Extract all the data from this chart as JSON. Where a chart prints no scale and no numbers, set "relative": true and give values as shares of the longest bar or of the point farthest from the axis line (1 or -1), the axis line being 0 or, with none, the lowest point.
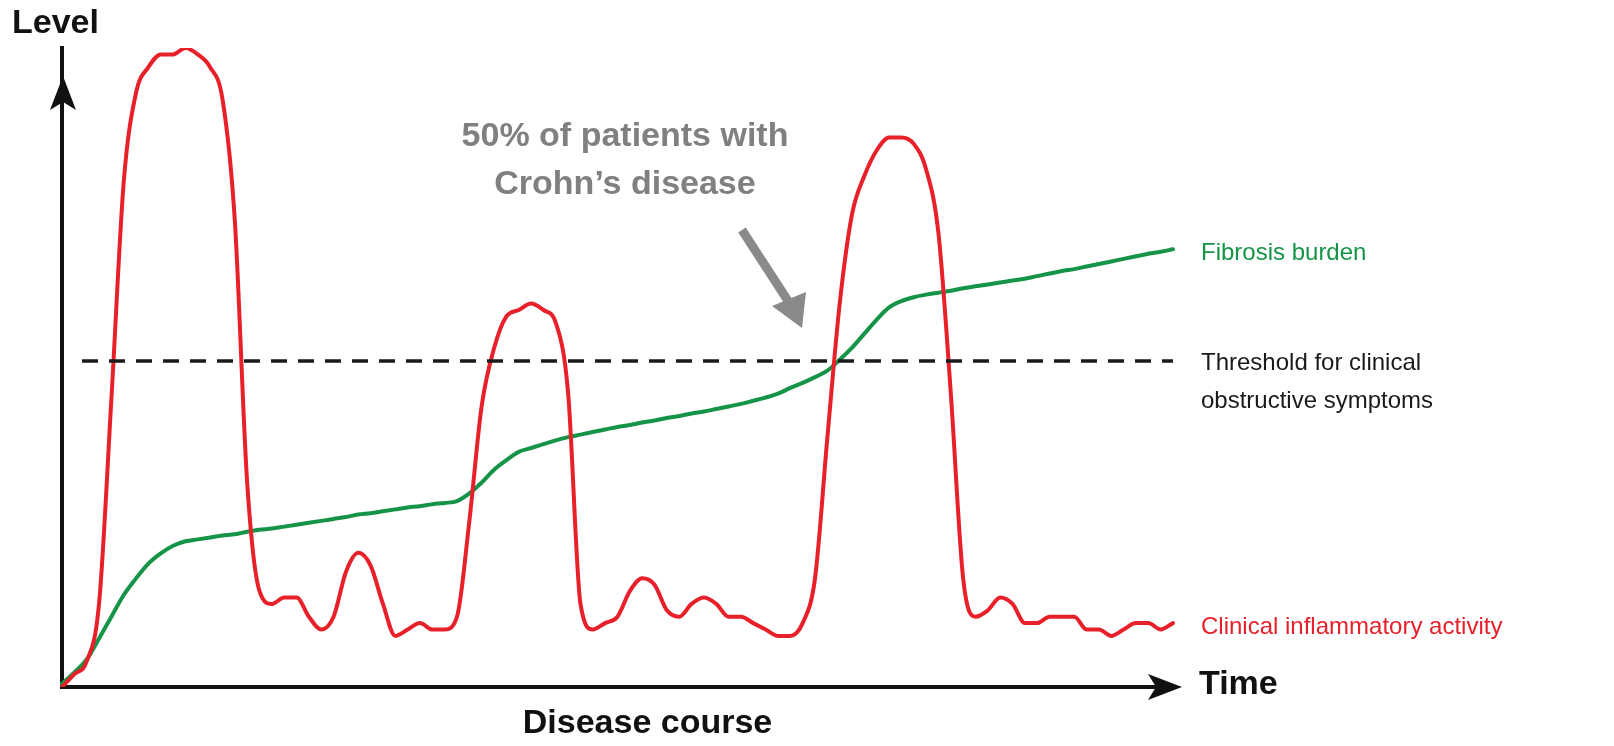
{
  "chart_data": {
    "type": "line",
    "relative": true,
    "ylabel": "Level",
    "xlabel": "Disease course",
    "annotations": [
      "Time",
      "50% of patients with Crohn’s disease"
    ],
    "categories": [
      null,
      null,
      null,
      null,
      null,
      null,
      null,
      null,
      null,
      null,
      null,
      null,
      null,
      null,
      null,
      null,
      null,
      null,
      null,
      null,
      null,
      null,
      null,
      null,
      null,
      null,
      null,
      null,
      null,
      null,
      null,
      null,
      null,
      null,
      null,
      null,
      null,
      null,
      null,
      null,
      null,
      null,
      null,
      null,
      null,
      null,
      null,
      null,
      null,
      null,
      null,
      null,
      null,
      null,
      null,
      null,
      null,
      null,
      null,
      null,
      null,
      null,
      null,
      null,
      null,
      null,
      null,
      null,
      null,
      null,
      null,
      null,
      null,
      null,
      null,
      null,
      null,
      null,
      null,
      null,
      null,
      null,
      null,
      null,
      null,
      null,
      null,
      null,
      null,
      null,
      null
    ],
    "series": [
      {
        "name": "Clinical inflammatory activity",
        "color": "#e8202a",
        "values": [
          0.0,
          0.02,
          0.04,
          0.13,
          0.45,
          0.79,
          0.93,
          0.97,
          0.99,
          0.99,
          1.0,
          0.99,
          0.97,
          0.92,
          0.73,
          0.32,
          0.15,
          0.13,
          0.14,
          0.14,
          0.11,
          0.09,
          0.11,
          0.18,
          0.21,
          0.19,
          0.13,
          0.08,
          0.09,
          0.1,
          0.09,
          0.09,
          0.11,
          0.26,
          0.44,
          0.53,
          0.58,
          0.59,
          0.6,
          0.59,
          0.57,
          0.46,
          0.13,
          0.09,
          0.1,
          0.11,
          0.15,
          0.17,
          0.16,
          0.12,
          0.11,
          0.13,
          0.14,
          0.13,
          0.11,
          0.11,
          0.1,
          0.09,
          0.08,
          0.08,
          0.1,
          0.17,
          0.39,
          0.6,
          0.74,
          0.8,
          0.84,
          0.86,
          0.86,
          0.85,
          0.81,
          0.71,
          0.46,
          0.17,
          0.11,
          0.12,
          0.14,
          0.13,
          0.1,
          0.1,
          0.11,
          0.11,
          0.11,
          0.09,
          0.09,
          0.08,
          0.09,
          0.1,
          0.1,
          0.09,
          0.1
        ]
      },
      {
        "name": "Fibrosis burden",
        "color": "#159447",
        "values": [
          0.005,
          0.023,
          0.043,
          0.076,
          0.11,
          0.144,
          0.17,
          0.193,
          0.209,
          0.221,
          0.228,
          0.231,
          0.234,
          0.237,
          0.239,
          0.243,
          0.246,
          0.248,
          0.251,
          0.254,
          0.257,
          0.26,
          0.263,
          0.266,
          0.27,
          0.272,
          0.275,
          0.278,
          0.281,
          0.283,
          0.286,
          0.288,
          0.291,
          0.303,
          0.32,
          0.34,
          0.355,
          0.368,
          0.374,
          0.38,
          0.386,
          0.391,
          0.395,
          0.399,
          0.403,
          0.407,
          0.41,
          0.414,
          0.417,
          0.421,
          0.424,
          0.428,
          0.431,
          0.435,
          0.439,
          0.443,
          0.448,
          0.453,
          0.459,
          0.468,
          0.476,
          0.485,
          0.495,
          0.512,
          0.531,
          0.553,
          0.575,
          0.594,
          0.604,
          0.61,
          0.614,
          0.617,
          0.62,
          0.624,
          0.627,
          0.63,
          0.633,
          0.636,
          0.639,
          0.643,
          0.647,
          0.651,
          0.654,
          0.658,
          0.662,
          0.666,
          0.67,
          0.674,
          0.678,
          0.681,
          0.685
        ]
      }
    ],
    "ref_lines": [
      {
        "axis": "y",
        "value": 0.51,
        "label": "Threshold for clinical obstructive symptoms",
        "color": "#1a1a1a",
        "line_style": "dashed"
      }
    ],
    "legend": false,
    "grid": false,
    "marker": "none"
  }
}
